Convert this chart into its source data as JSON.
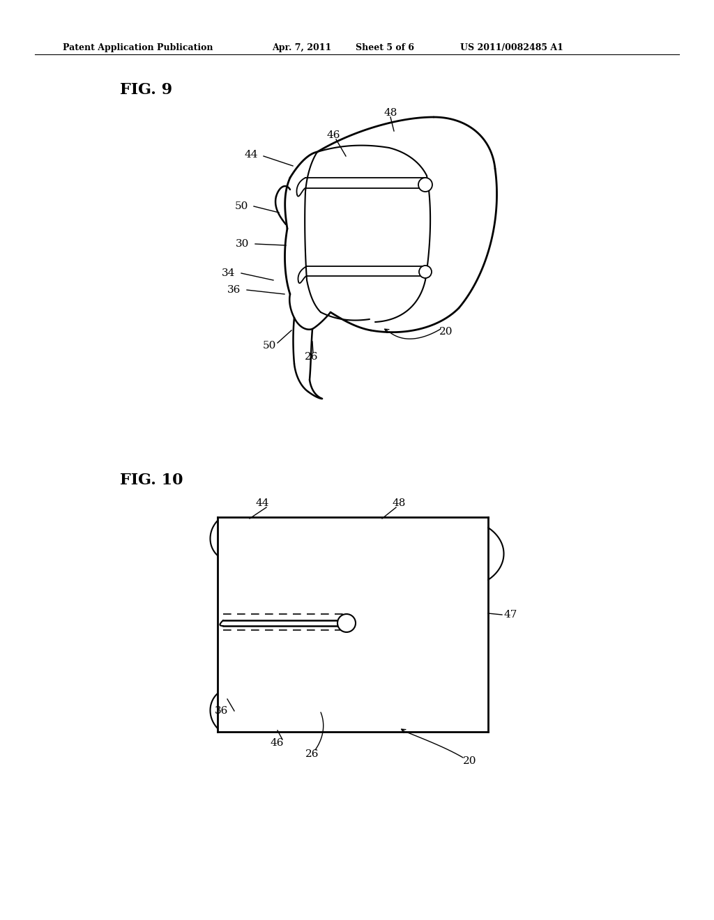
{
  "background_color": "#ffffff",
  "header_text": "Patent Application Publication",
  "header_date": "Apr. 7, 2011",
  "header_sheet": "Sheet 5 of 6",
  "header_patent": "US 2011/0082485 A1",
  "fig9_label": "FIG. 9",
  "fig10_label": "FIG. 10",
  "line_color": "#000000",
  "line_width": 1.5,
  "label_fontsize": 11,
  "header_fontsize": 9,
  "fig_label_fontsize": 16
}
